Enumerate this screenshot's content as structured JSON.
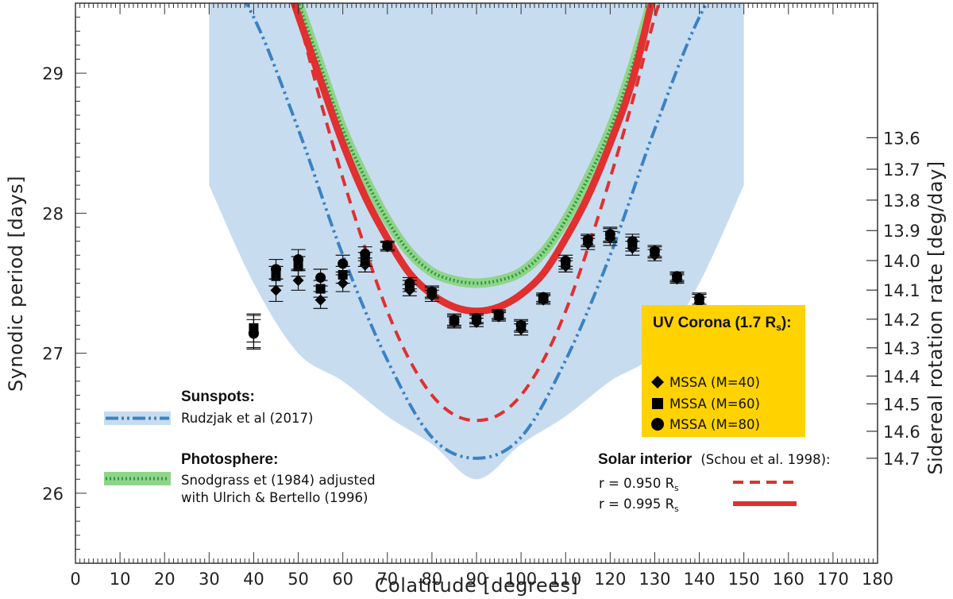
{
  "chart_data": {
    "type": "line",
    "xlabel": "Colatitude [degrees]",
    "ylabel": "Synodic period [days]",
    "y2label": "Sidereal rotation rate [deg/day]",
    "xlim": [
      0,
      180
    ],
    "ylim": [
      25.5,
      29.5
    ],
    "xticks": [
      "0",
      "10",
      "20",
      "30",
      "40",
      "50",
      "60",
      "70",
      "80",
      "90",
      "100",
      "110",
      "120",
      "130",
      "140",
      "150",
      "160",
      "170",
      "180"
    ],
    "yticks": [
      "26",
      "27",
      "28",
      "29"
    ],
    "y2ticks": [
      "13.6",
      "13.7",
      "13.8",
      "13.9",
      "14.0",
      "14.1",
      "14.2",
      "14.3",
      "14.4",
      "14.5",
      "14.6",
      "14.7"
    ],
    "grid": false,
    "series": [
      {
        "name": "Rudzjak et al (2017)",
        "style": "dash-dot-dot",
        "color": "#3a82c4",
        "band_color": "#c8dcf0",
        "x": [
          30,
          40,
          50,
          60,
          70,
          80,
          90,
          100,
          110,
          120,
          130,
          140,
          150
        ],
        "y": [
          29.9,
          29.4,
          28.6,
          27.7,
          26.95,
          26.4,
          26.25,
          26.4,
          26.95,
          27.7,
          28.6,
          29.4,
          29.9
        ],
        "band_upper": [
          29.6,
          29.6,
          29.6,
          29.6,
          29.6,
          29.6,
          29.6,
          29.6,
          29.6,
          29.6,
          29.6,
          29.6,
          29.6
        ],
        "band_lower": [
          28.2,
          27.5,
          27.0,
          26.8,
          26.55,
          26.35,
          26.1,
          26.35,
          26.55,
          26.8,
          27.0,
          27.5,
          28.2
        ]
      },
      {
        "name": "Snodgrass et (1984) adjusted with Ulrich & Bertello (1996)",
        "style": "dotted",
        "color": "#2a9a3a",
        "band_color": "#8fd48a",
        "x": [
          49,
          55,
          60,
          65,
          70,
          75,
          80,
          85,
          90,
          95,
          100,
          105,
          110,
          115,
          120,
          125,
          130
        ],
        "y": [
          29.6,
          29.05,
          28.6,
          28.25,
          27.95,
          27.72,
          27.58,
          27.52,
          27.5,
          27.52,
          27.58,
          27.72,
          27.95,
          28.25,
          28.6,
          29.05,
          29.6
        ]
      },
      {
        "name": "r = 0.950 Rs",
        "style": "dashed",
        "color": "#e03030",
        "x": [
          45,
          50,
          55,
          60,
          65,
          70,
          75,
          80,
          85,
          90,
          95,
          100,
          105,
          110,
          115,
          120,
          125,
          130,
          135
        ],
        "y": [
          29.9,
          29.4,
          28.8,
          28.25,
          27.75,
          27.3,
          26.95,
          26.7,
          26.56,
          26.52,
          26.56,
          26.7,
          26.95,
          27.3,
          27.75,
          28.25,
          28.8,
          29.4,
          29.9
        ]
      },
      {
        "name": "r = 0.995 Rs",
        "style": "solid",
        "color": "#e03030",
        "x": [
          48,
          55,
          60,
          65,
          70,
          75,
          80,
          85,
          90,
          95,
          100,
          105,
          110,
          115,
          120,
          125,
          130
        ],
        "y": [
          29.6,
          28.95,
          28.5,
          28.12,
          27.82,
          27.57,
          27.42,
          27.33,
          27.3,
          27.33,
          27.42,
          27.57,
          27.82,
          28.12,
          28.5,
          28.95,
          29.6
        ]
      },
      {
        "name": "MSSA (M=40)",
        "marker": "diamond",
        "color": "#000000",
        "x": [
          40,
          45,
          50,
          55,
          60,
          65,
          70,
          75,
          80,
          85,
          90,
          95,
          100,
          105,
          110,
          115,
          120,
          125,
          130,
          135,
          140
        ],
        "y": [
          27.15,
          27.45,
          27.52,
          27.38,
          27.5,
          27.63,
          27.76,
          27.45,
          27.41,
          27.22,
          27.22,
          27.26,
          27.17,
          27.38,
          27.62,
          27.78,
          27.82,
          27.75,
          27.7,
          27.53,
          27.36
        ],
        "err": [
          0.12,
          0.08,
          0.07,
          0.06,
          0.06,
          0.05,
          0.03,
          0.04,
          0.04,
          0.04,
          0.03,
          0.03,
          0.04,
          0.03,
          0.04,
          0.04,
          0.05,
          0.05,
          0.04,
          0.03,
          0.04
        ]
      },
      {
        "name": "MSSA (M=60)",
        "marker": "square",
        "color": "#000000",
        "x": [
          40,
          45,
          50,
          55,
          60,
          65,
          70,
          75,
          80,
          85,
          90,
          95,
          100,
          105,
          110,
          115,
          120,
          125,
          130,
          135,
          140
        ],
        "y": [
          27.18,
          27.55,
          27.62,
          27.46,
          27.56,
          27.67,
          27.77,
          27.48,
          27.43,
          27.23,
          27.24,
          27.27,
          27.19,
          27.39,
          27.64,
          27.8,
          27.84,
          27.78,
          27.72,
          27.54,
          27.38
        ],
        "err": [
          0.1,
          0.07,
          0.07,
          0.06,
          0.06,
          0.05,
          0.03,
          0.04,
          0.04,
          0.04,
          0.03,
          0.03,
          0.04,
          0.03,
          0.04,
          0.04,
          0.05,
          0.05,
          0.04,
          0.03,
          0.04
        ]
      },
      {
        "name": "MSSA (M=80)",
        "marker": "circle",
        "color": "#000000",
        "x": [
          40,
          45,
          50,
          55,
          60,
          65,
          70,
          75,
          80,
          85,
          90,
          95,
          100,
          105,
          110,
          115,
          120,
          125,
          130,
          135,
          140
        ],
        "y": [
          27.14,
          27.6,
          27.67,
          27.54,
          27.64,
          27.71,
          27.77,
          27.5,
          27.44,
          27.24,
          27.25,
          27.28,
          27.2,
          27.4,
          27.66,
          27.81,
          27.85,
          27.8,
          27.73,
          27.55,
          27.39
        ],
        "err": [
          0.1,
          0.07,
          0.07,
          0.06,
          0.06,
          0.05,
          0.03,
          0.04,
          0.04,
          0.04,
          0.03,
          0.03,
          0.04,
          0.03,
          0.04,
          0.04,
          0.05,
          0.05,
          0.04,
          0.03,
          0.04
        ]
      }
    ],
    "legend": {
      "sunspots_title": "Sunspots:",
      "sunspots_label": "Rudzjak et al (2017)",
      "photosphere_title": "Photosphere:",
      "photosphere_line1": "Snodgrass et (1984) adjusted",
      "photosphere_line2": "with Ulrich & Bertello (1996)",
      "interior_title": "Solar interior",
      "interior_ref": "(Schou et al. 1998):",
      "interior_r1": "r = 0.950 R",
      "interior_r2": "r = 0.995 R",
      "interior_sub": "s",
      "uv_title": "UV Corona (1.7 R",
      "uv_sub": "s",
      "uv_close": "):",
      "uv_m40": "MSSA (M=40)",
      "uv_m60": "MSSA (M=60)",
      "uv_m80": "MSSA (M=80)",
      "uv_box_color": "#ffd200",
      "position": "bottom-left / bottom-right"
    }
  }
}
